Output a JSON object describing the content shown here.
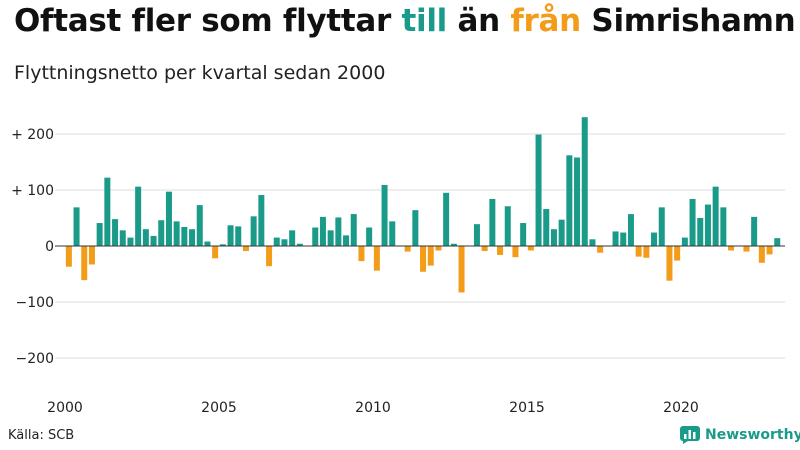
{
  "title": {
    "part1": "Oftast fler som flyttar ",
    "pos_word": "till",
    "part2": " än ",
    "neg_word": "från",
    "part3": " Simrishamn"
  },
  "subtitle": "Flyttningsnetto per kvartal sedan 2000",
  "source": "Källa: SCB",
  "brand": {
    "name": "Newsworthy",
    "icon": "bar-chart-logo-icon"
  },
  "colors": {
    "positive": "#1a9b8a",
    "negative": "#f39c1a",
    "grid": "#dddddd",
    "axis": "#333333"
  },
  "chart_data": {
    "type": "bar",
    "title": "Oftast fler som flyttar till än från Simrishamn",
    "subtitle": "Flyttningsnetto per kvartal sedan 2000",
    "xlabel": "",
    "ylabel": "",
    "ylim": [
      -220,
      240
    ],
    "yticks": [
      {
        "value": 200,
        "label": "+ 200"
      },
      {
        "value": 100,
        "label": "+ 100"
      },
      {
        "value": 0,
        "label": "0"
      },
      {
        "value": -100,
        "label": "−100"
      },
      {
        "value": -200,
        "label": "−200"
      }
    ],
    "xticks": [
      "2000",
      "2005",
      "2010",
      "2015",
      "2020"
    ],
    "grid": true,
    "start_year": 2000,
    "values": [
      -37,
      69,
      -61,
      -33,
      41,
      122,
      48,
      28,
      15,
      106,
      30,
      18,
      46,
      97,
      44,
      34,
      30,
      73,
      8,
      -22,
      3,
      37,
      35,
      -9,
      53,
      91,
      -36,
      15,
      12,
      28,
      4,
      0,
      33,
      52,
      28,
      51,
      19,
      57,
      -27,
      33,
      -44,
      109,
      44,
      0,
      -10,
      64,
      -46,
      -35,
      -8,
      95,
      4,
      -83,
      0,
      39,
      -9,
      84,
      -16,
      71,
      -20,
      41,
      -8,
      199,
      66,
      30,
      47,
      162,
      158,
      230,
      12,
      -12,
      0,
      26,
      24,
      57,
      -19,
      -21,
      24,
      69,
      -62,
      -26,
      15,
      84,
      50,
      74,
      106,
      69,
      -8,
      0,
      -10,
      52,
      -30,
      -15,
      14
    ]
  }
}
